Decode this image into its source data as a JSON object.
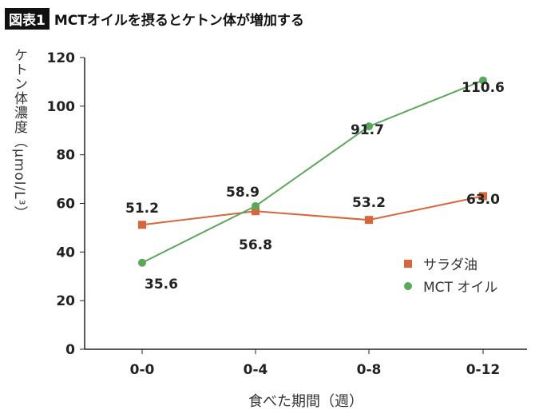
{
  "title": {
    "badge": "図表1",
    "text": "MCTオイルを摂るとケトン体が増加する"
  },
  "chart_data": {
    "type": "line",
    "title": "MCTオイルを摂るとケトン体が増加する",
    "xlabel": "食べた期間（週）",
    "ylabel": "ケトン体濃度（μmol/L³）",
    "categories": [
      "0-0",
      "0-4",
      "0-8",
      "0-12"
    ],
    "ylim": [
      0,
      120
    ],
    "yticks": [
      0,
      20,
      40,
      60,
      80,
      100,
      120
    ],
    "grid": false,
    "legend_position": "bottom-right",
    "series": [
      {
        "name": "サラダ油",
        "color": "#d9653b",
        "marker": "square",
        "values": [
          51.2,
          56.8,
          53.2,
          63.0
        ],
        "labels": [
          "51.2",
          "56.8",
          "53.2",
          "63.0"
        ]
      },
      {
        "name": "MCT オイル",
        "color": "#5aa858",
        "marker": "circle",
        "values": [
          35.6,
          58.9,
          91.7,
          110.6
        ],
        "labels": [
          "35.6",
          "58.9",
          "91.7",
          "110.6"
        ]
      }
    ]
  }
}
